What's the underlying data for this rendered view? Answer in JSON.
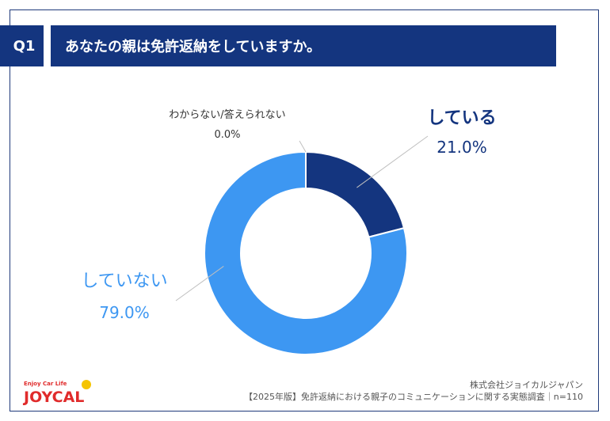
{
  "header": {
    "question_badge": "Q1",
    "title": "あなたの親は免許返納をしていますか。"
  },
  "chart_data": {
    "type": "pie",
    "donut": true,
    "categories": [
      "している",
      "していない",
      "わからない/答えられない"
    ],
    "values": [
      21.0,
      79.0,
      0.0
    ],
    "value_labels": [
      "21.0%",
      "79.0%",
      "0.0%"
    ],
    "colors": [
      "#14357f",
      "#3d97f2",
      "#a8b8d0"
    ],
    "legend": "none"
  },
  "footer": {
    "company": "株式会社ジョイカルジャパン",
    "source": "【2025年版】免許返納における親子のコミュニケーションに関する実態調査｜n=110"
  },
  "logo": {
    "tagline": "Enjoy Car Life",
    "wordmark": "JOYCAL",
    "colors": {
      "red": "#e02b2b",
      "yellow": "#f5c400"
    }
  }
}
